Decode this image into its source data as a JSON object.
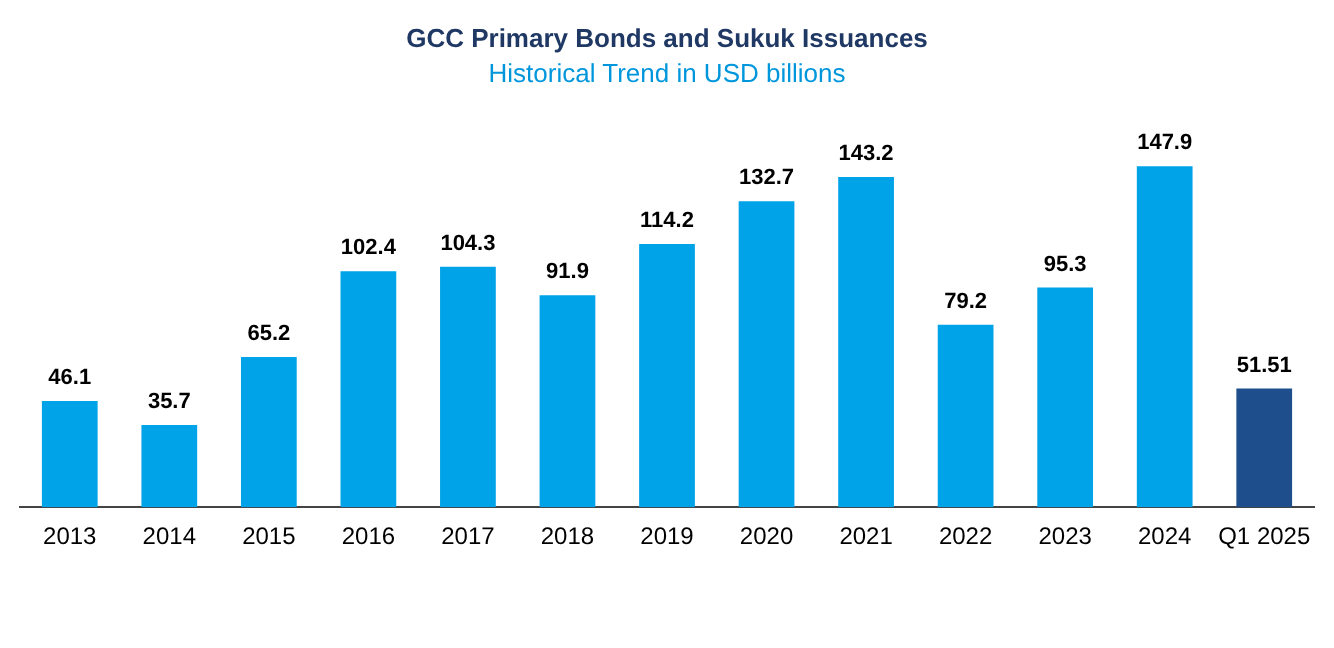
{
  "chart_data": {
    "type": "bar",
    "title": "GCC Primary Bonds and Sukuk Issuances",
    "subtitle": "Historical Trend in USD billions",
    "categories": [
      "2013",
      "2014",
      "2015",
      "2016",
      "2017",
      "2018",
      "2019",
      "2020",
      "2021",
      "2022",
      "2023",
      "2024",
      "Q1 2025"
    ],
    "values": [
      46.1,
      35.7,
      65.2,
      102.4,
      104.3,
      91.9,
      114.2,
      132.7,
      143.2,
      79.2,
      95.3,
      147.9,
      51.51
    ],
    "colors": [
      "#00a2e8",
      "#00a2e8",
      "#00a2e8",
      "#00a2e8",
      "#00a2e8",
      "#00a2e8",
      "#00a2e8",
      "#00a2e8",
      "#00a2e8",
      "#00a2e8",
      "#00a2e8",
      "#00a2e8",
      "#1f4e8c"
    ],
    "data_labels": true,
    "grid": false,
    "legend": false
  }
}
